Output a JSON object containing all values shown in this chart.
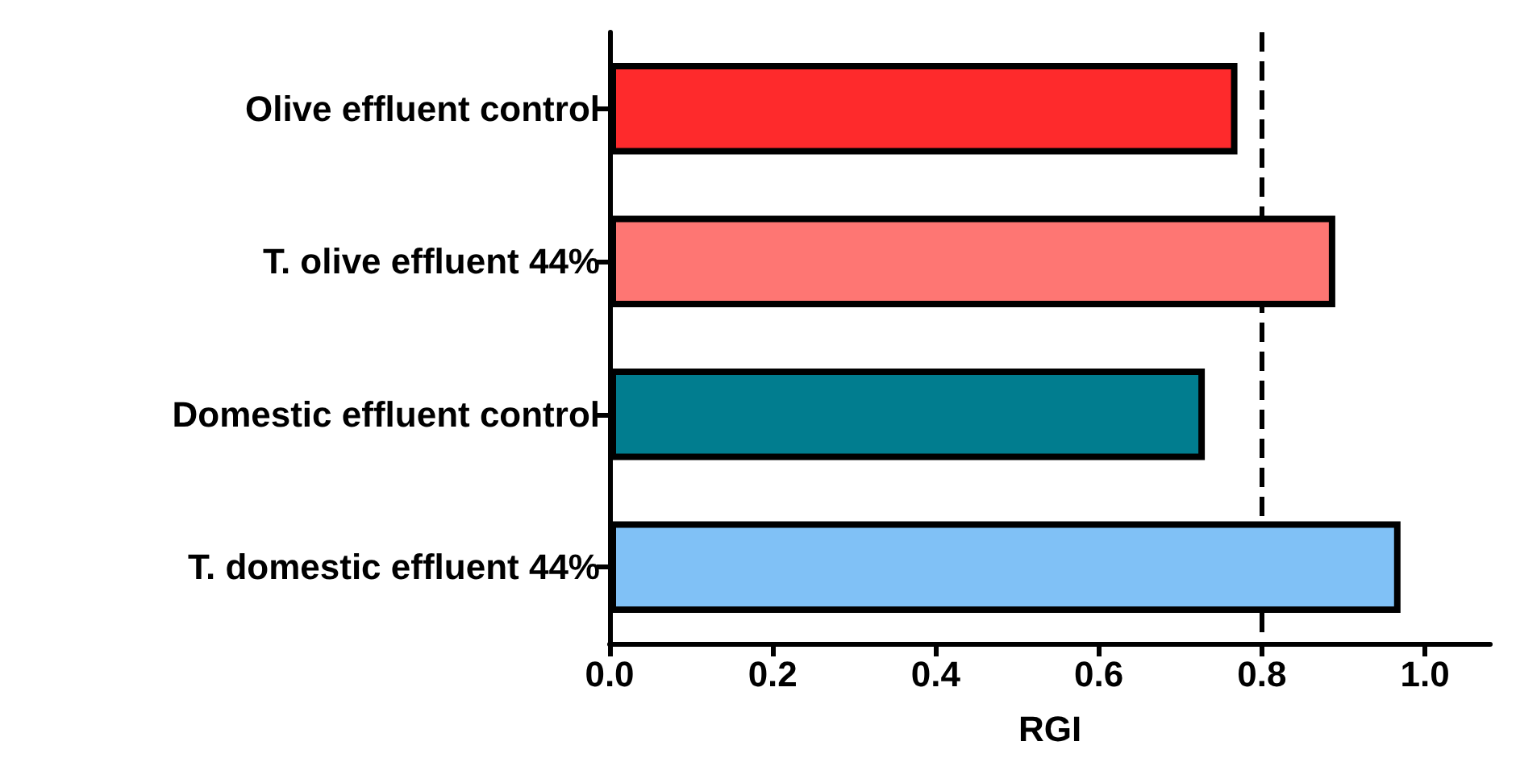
{
  "chart_data": {
    "type": "bar",
    "orientation": "horizontal",
    "xlabel": "RGI",
    "categories": [
      "Olive effluent control",
      "T. olive effluent 44%",
      "Domestic effluent control",
      "T. domestic effluent 44%"
    ],
    "values": [
      0.77,
      0.89,
      0.73,
      0.97
    ],
    "colors": [
      "#fe2a2c",
      "#fe7673",
      "#017d8f",
      "#80c1f6"
    ],
    "xlim": [
      0,
      1.08
    ],
    "xticks": [
      {
        "value": 0,
        "label": "0.0"
      },
      {
        "value": 0.2,
        "label": "0.2"
      },
      {
        "value": 0.4,
        "label": "0.4"
      },
      {
        "value": 0.6,
        "label": "0.6"
      },
      {
        "value": 0.8,
        "label": "0.8"
      },
      {
        "value": 1,
        "label": "1.0"
      }
    ],
    "ref_lines": [
      {
        "axis": "x",
        "value": 0.8,
        "color": "#000000",
        "line_style": "dashed"
      }
    ],
    "grid": false
  }
}
